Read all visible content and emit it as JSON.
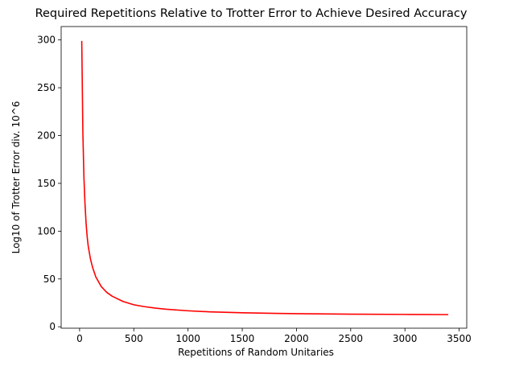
{
  "chart_data": {
    "type": "line",
    "title": "Required Repetitions Relative to Trotter Error to Achieve Desired Accuracy",
    "xlabel": "Repetitions of Random Unitaries",
    "ylabel": "Log10 of Trotter Error div. 10^6",
    "xlim": [
      -170,
      3570
    ],
    "ylim": [
      -1.5,
      314
    ],
    "xticks": [
      0,
      500,
      1000,
      1500,
      2000,
      2500,
      3000,
      3500
    ],
    "yticks": [
      0,
      50,
      100,
      150,
      200,
      250,
      300
    ],
    "xtick_labels": [
      "0",
      "500",
      "1000",
      "1500",
      "2000",
      "2500",
      "3000",
      "3500"
    ],
    "ytick_labels": [
      "0",
      "50",
      "100",
      "150",
      "200",
      "250",
      "300"
    ],
    "grid": false,
    "series": [
      {
        "color": "#ff0000",
        "points": [
          [
            20,
            299
          ],
          [
            30,
            204
          ],
          [
            40,
            156
          ],
          [
            50,
            128
          ],
          [
            60,
            108
          ],
          [
            70,
            94
          ],
          [
            80,
            84
          ],
          [
            100,
            71
          ],
          [
            120,
            62
          ],
          [
            150,
            52
          ],
          [
            200,
            42
          ],
          [
            250,
            36
          ],
          [
            300,
            32
          ],
          [
            400,
            26.5
          ],
          [
            500,
            23
          ],
          [
            600,
            21
          ],
          [
            700,
            19.5
          ],
          [
            800,
            18.3
          ],
          [
            1000,
            16.7
          ],
          [
            1200,
            15.6
          ],
          [
            1500,
            14.6
          ],
          [
            1800,
            14
          ],
          [
            2000,
            13.7
          ],
          [
            2500,
            13.2
          ],
          [
            3000,
            12.9
          ],
          [
            3400,
            12.7
          ]
        ]
      }
    ]
  }
}
